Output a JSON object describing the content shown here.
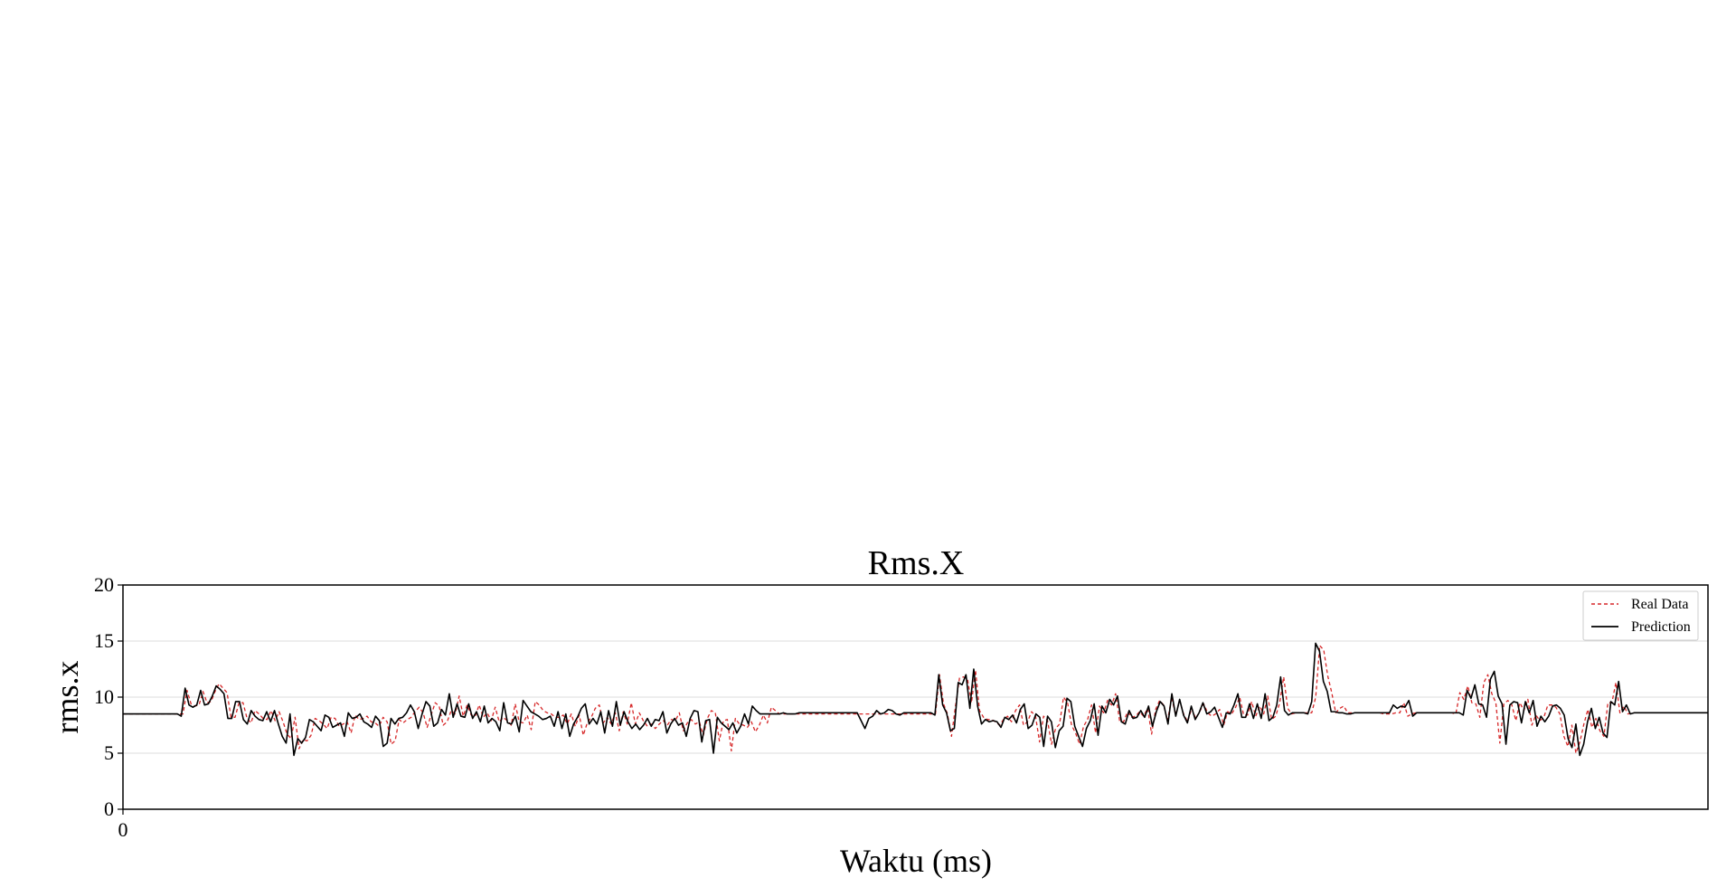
{
  "chart_data": {
    "type": "line",
    "title": "Rms.X",
    "xlabel": "Waktu (ms)",
    "ylabel": "rms.x",
    "xlim": [
      0,
      560
    ],
    "ylim": [
      0,
      20
    ],
    "yticks": [
      0,
      5,
      10,
      15,
      20
    ],
    "yticklabels": [
      "0",
      "5",
      "10",
      "15",
      "20"
    ],
    "xticks": [
      0
    ],
    "xticklabels": [
      "0"
    ],
    "grid": true,
    "legend": "top-right",
    "colors": {
      "real": "#d62728",
      "prediction": "#000000",
      "grid": "#dddddd"
    },
    "series": [
      {
        "name": "Real Data",
        "style": "dashed",
        "color": "#d62728",
        "values": [
          8.5,
          8.5,
          8.5,
          8.5,
          8.5,
          8.5,
          8.5,
          8.5,
          8.5,
          8.5,
          8.5,
          8.5,
          8.5,
          8.5,
          8.5,
          8.5,
          10.6,
          9.4,
          9.2,
          9.3,
          10.5,
          9.5,
          9.6,
          10.5,
          11.2,
          10.8,
          10.4,
          8.2,
          8.2,
          9.5,
          9.5,
          8.1,
          7.7,
          8.8,
          8.5,
          8.1,
          8.0,
          8.8,
          7.9,
          8.7,
          7.8,
          6.7,
          6.3,
          8.2,
          5.4,
          6.2,
          6.1,
          6.6,
          8.1,
          7.9,
          7.6,
          7.2,
          8.2,
          8.1,
          7.4,
          7.6,
          7.8,
          6.8,
          8.4,
          8.0,
          8.1,
          8.3,
          7.8,
          7.7,
          7.4,
          8.2,
          7.8,
          5.8,
          6.1,
          8.0,
          7.7,
          8.0,
          8.2,
          8.7,
          9.1,
          8.6,
          7.3,
          8.4,
          9.5,
          9.2,
          7.5,
          7.8,
          8.8,
          8.5,
          10.1,
          8.3,
          9.3,
          8.4,
          8.3,
          9.3,
          8.2,
          8.6,
          7.9,
          9.1,
          7.8,
          8.2,
          7.9,
          7.5,
          9.4,
          7.8,
          7.7,
          8.4,
          7.1,
          9.6,
          9.3,
          8.8,
          8.6,
          8.5,
          8.2,
          8.2,
          8.4,
          7.6,
          8.5,
          7.4,
          8.4,
          6.6,
          7.7,
          8.2,
          9.0,
          9.3,
          7.7,
          8.2,
          7.6,
          8.6,
          7.0,
          8.7,
          7.6,
          9.5,
          7.6,
          8.6,
          7.9,
          7.4,
          7.6,
          7.2,
          7.6,
          7.9,
          7.5,
          8.0,
          7.9,
          8.6,
          7.0,
          7.7,
          8.0,
          7.6,
          7.8,
          6.6,
          8.1,
          8.8,
          8.6,
          6.1,
          7.9,
          8.0,
          5.2,
          8.1,
          7.6,
          7.5,
          7.3,
          7.8,
          6.9,
          7.5,
          8.4,
          7.7,
          9.1,
          8.8,
          8.5,
          8.5,
          8.5,
          8.5,
          8.5,
          8.5,
          8.5,
          8.5,
          8.5,
          8.5,
          8.5,
          8.5,
          8.5,
          8.5,
          8.5,
          8.5,
          8.5,
          8.5,
          8.5,
          8.5,
          8.5,
          8.5,
          8.5,
          8.5,
          8.5,
          8.5,
          8.5,
          8.5,
          8.5,
          8.5,
          8.5,
          8.5,
          8.5,
          8.5,
          8.5,
          8.5,
          8.5,
          8.5,
          8.5,
          8.5,
          12.0,
          9.4,
          8.5,
          6.5,
          9.2,
          11.7,
          11.8,
          11.6,
          9.5,
          12.4,
          8.8,
          8.2,
          8.0,
          8.0,
          7.8,
          7.5,
          8.0,
          8.3,
          7.8,
          8.8,
          9.3,
          7.5,
          7.8,
          8.7,
          8.3,
          6.0,
          8.3,
          7.9,
          5.8,
          7.2,
          7.6,
          10.0,
          9.5,
          7.5,
          6.8,
          5.8,
          7.4,
          8.0,
          9.3,
          6.8,
          9.2,
          8.6,
          9.7,
          9.3,
          10.3,
          7.9,
          7.8,
          8.7,
          8.2,
          8.3,
          8.7,
          8.3,
          9.0,
          6.7,
          8.9,
          9.7,
          9.3,
          7.9,
          10.0,
          8.4,
          9.7,
          8.5,
          7.8,
          9.0,
          8.1,
          8.7,
          9.4,
          8.6,
          8.3,
          8.5,
          8.9,
          7.5,
          8.7,
          8.5,
          9.1,
          10.0,
          8.4,
          8.4,
          9.6,
          8.3,
          9.2,
          8.5,
          10.1,
          8.0,
          8.3,
          9.5,
          11.8,
          9.0,
          8.5,
          8.6,
          8.6,
          8.6,
          8.6,
          8.6,
          10.0,
          14.6,
          14.2,
          11.9,
          10.4,
          8.6,
          9.0,
          9.2,
          8.6,
          8.6,
          8.6,
          8.6,
          8.6,
          8.6,
          8.6,
          8.6,
          8.6,
          8.5,
          8.5,
          8.5,
          8.6,
          8.6,
          9.5,
          8.3,
          8.5,
          8.6,
          8.6,
          8.6,
          8.6,
          8.6,
          8.6,
          8.6,
          8.6,
          8.6,
          8.6,
          8.5,
          10.4,
          9.8,
          11.0,
          9.5,
          9.4,
          8.2,
          11.3,
          12.0,
          10.3,
          9.5,
          5.9,
          9.4,
          9.7,
          9.3,
          7.9,
          9.5,
          8.8,
          9.8,
          7.5,
          8.4,
          7.9,
          8.2,
          9.3,
          9.3,
          9.1,
          8.5,
          6.5,
          5.6,
          7.5,
          5.0,
          6.0,
          7.6,
          8.9,
          7.3,
          8.1,
          7.0,
          6.5,
          9.5,
          9.5,
          11.3,
          8.6,
          9.2,
          8.5,
          8.6,
          8.6,
          8.6,
          8.6,
          8.6,
          8.6,
          8.6,
          8.6,
          8.6,
          8.6,
          8.6,
          8.6,
          8.6,
          8.6,
          8.6,
          8.6,
          8.6,
          8.6,
          8.6,
          8.6
        ]
      },
      {
        "name": "Prediction",
        "style": "solid",
        "color": "#000000",
        "values": [
          8.5,
          8.5,
          8.5,
          8.5,
          8.5,
          8.5,
          8.5,
          8.5,
          8.5,
          8.5,
          8.5,
          8.5,
          8.5,
          8.5,
          8.5,
          8.3,
          10.8,
          9.3,
          9.1,
          9.3,
          10.6,
          9.3,
          9.4,
          10.1,
          11.0,
          10.7,
          10.3,
          8.1,
          8.1,
          9.6,
          9.6,
          8.0,
          7.6,
          8.8,
          8.3,
          8.0,
          7.9,
          8.7,
          7.8,
          8.8,
          7.6,
          6.5,
          5.9,
          8.5,
          4.8,
          6.3,
          5.9,
          6.4,
          8.0,
          7.8,
          7.4,
          7.0,
          8.4,
          8.2,
          7.3,
          7.5,
          7.7,
          6.5,
          8.6,
          8.1,
          8.2,
          8.5,
          7.8,
          7.6,
          7.3,
          8.3,
          7.9,
          5.6,
          5.9,
          8.1,
          7.6,
          8.1,
          8.2,
          8.6,
          9.3,
          8.7,
          7.2,
          8.5,
          9.6,
          9.2,
          7.4,
          7.7,
          8.9,
          8.4,
          10.3,
          8.2,
          9.4,
          8.3,
          8.2,
          9.4,
          8.1,
          8.7,
          7.8,
          9.2,
          7.7,
          8.1,
          7.8,
          7.0,
          9.5,
          7.7,
          7.6,
          8.3,
          6.9,
          9.7,
          9.2,
          8.7,
          8.5,
          8.3,
          8.0,
          8.1,
          8.3,
          7.4,
          8.7,
          7.2,
          8.5,
          6.5,
          7.6,
          8.2,
          9.0,
          9.4,
          7.6,
          8.1,
          7.6,
          8.7,
          6.8,
          8.8,
          7.4,
          9.6,
          7.5,
          8.7,
          7.8,
          7.2,
          7.6,
          7.1,
          7.5,
          8.1,
          7.4,
          8.0,
          7.9,
          8.7,
          6.8,
          7.6,
          8.1,
          7.5,
          7.7,
          6.5,
          8.1,
          8.8,
          8.7,
          6.0,
          7.9,
          8.0,
          5.0,
          8.2,
          7.7,
          7.4,
          7.1,
          7.7,
          6.8,
          7.4,
          8.5,
          7.6,
          9.2,
          8.8,
          8.5,
          8.5,
          8.5,
          8.5,
          8.5,
          8.5,
          8.6,
          8.5,
          8.5,
          8.5,
          8.6,
          8.6,
          8.6,
          8.6,
          8.6,
          8.6,
          8.6,
          8.6,
          8.6,
          8.6,
          8.6,
          8.6,
          8.6,
          8.6,
          8.6,
          8.6,
          7.9,
          7.2,
          8.1,
          8.3,
          8.8,
          8.5,
          8.6,
          8.9,
          8.8,
          8.5,
          8.4,
          8.6,
          8.6,
          8.6,
          8.6,
          8.6,
          8.6,
          8.6,
          8.6,
          8.4,
          12.0,
          9.3,
          8.6,
          7.0,
          7.2,
          11.3,
          11.1,
          12.0,
          9.0,
          12.5,
          9.2,
          7.6,
          8.0,
          7.8,
          7.9,
          7.8,
          7.3,
          8.2,
          8.0,
          8.4,
          7.7,
          8.9,
          9.4,
          7.2,
          7.5,
          8.5,
          8.2,
          5.6,
          8.3,
          7.8,
          5.5,
          7.0,
          7.4,
          9.9,
          9.6,
          7.4,
          6.5,
          5.6,
          7.2,
          7.9,
          9.4,
          6.6,
          9.2,
          8.6,
          9.8,
          9.3,
          10.1,
          7.8,
          7.6,
          8.8,
          8.1,
          8.2,
          8.8,
          8.2,
          9.2,
          7.4,
          8.7,
          9.6,
          9.2,
          7.6,
          10.3,
          8.3,
          9.8,
          8.4,
          7.7,
          9.2,
          8.0,
          8.6,
          9.5,
          8.5,
          8.7,
          9.1,
          8.2,
          7.3,
          8.6,
          8.5,
          9.3,
          10.3,
          8.2,
          8.2,
          9.4,
          8.1,
          9.4,
          8.1,
          10.3,
          7.9,
          8.2,
          9.3,
          11.8,
          8.8,
          8.4,
          8.6,
          8.6,
          8.6,
          8.6,
          8.5,
          9.6,
          14.8,
          14.1,
          11.4,
          10.5,
          8.7,
          8.7,
          8.6,
          8.6,
          8.5,
          8.5,
          8.6,
          8.6,
          8.6,
          8.6,
          8.6,
          8.6,
          8.6,
          8.6,
          8.6,
          8.6,
          9.3,
          9.0,
          9.2,
          9.1,
          9.7,
          8.3,
          8.6,
          8.6,
          8.6,
          8.6,
          8.6,
          8.6,
          8.6,
          8.6,
          8.6,
          8.6,
          8.6,
          8.6,
          8.4,
          10.6,
          9.9,
          11.1,
          9.4,
          9.3,
          8.2,
          11.6,
          12.3,
          10.1,
          9.4,
          5.8,
          9.3,
          9.6,
          9.5,
          7.7,
          9.6,
          8.6,
          9.7,
          7.4,
          8.3,
          7.8,
          8.3,
          9.2,
          9.3,
          9.0,
          8.4,
          6.3,
          5.5,
          7.6,
          4.8,
          5.8,
          7.8,
          9.0,
          7.2,
          8.2,
          6.8,
          6.4,
          9.6,
          9.3,
          11.4,
          8.7,
          9.3,
          8.5,
          8.6,
          8.6,
          8.6,
          8.6,
          8.6,
          8.6,
          8.6,
          8.6,
          8.6,
          8.6,
          8.6,
          8.6,
          8.6,
          8.6,
          8.6,
          8.6,
          8.6,
          8.6,
          8.6,
          8.6
        ]
      }
    ]
  }
}
